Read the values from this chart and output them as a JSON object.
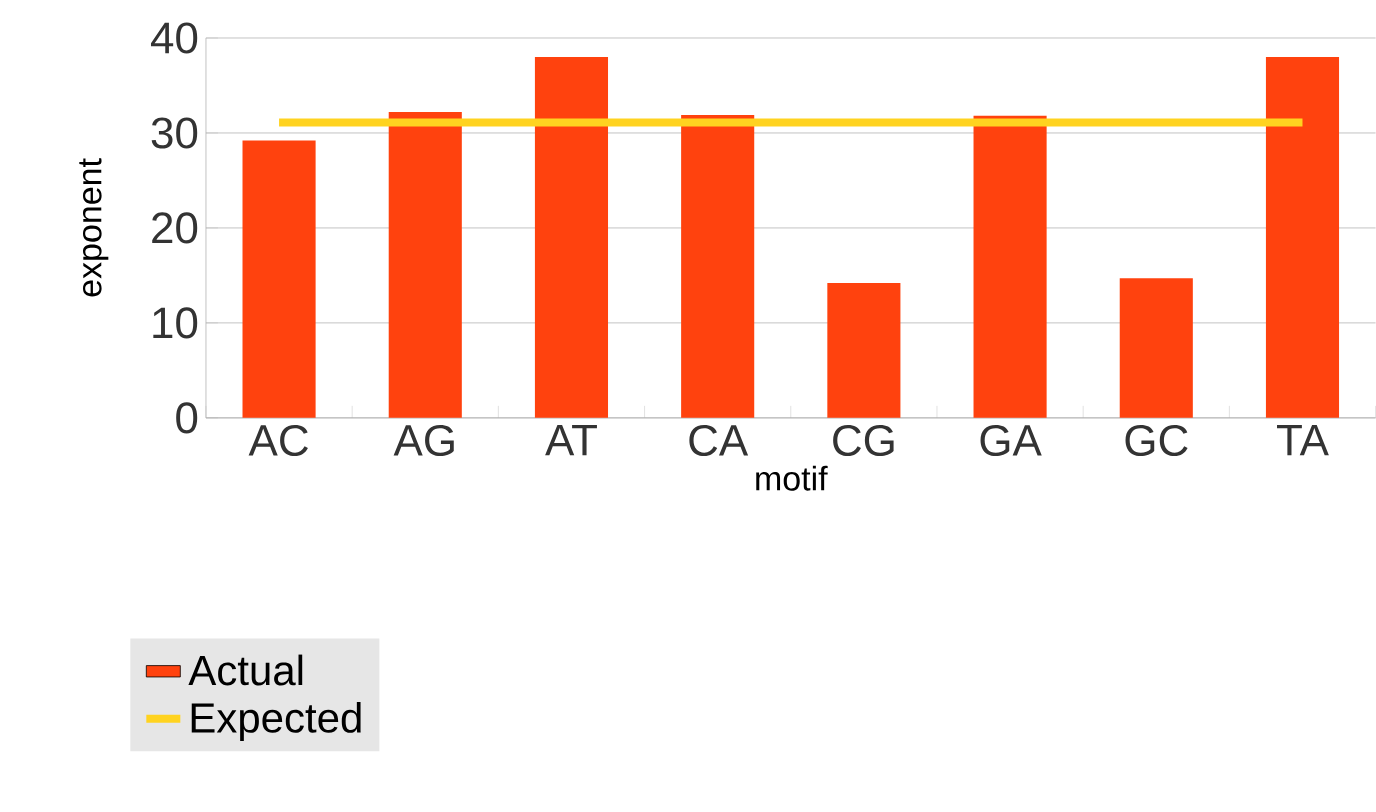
{
  "chart_data": {
    "type": "bar",
    "xlabel": "motif",
    "ylabel": "exponent",
    "categories": [
      "AC",
      "AG",
      "AT",
      "CA",
      "CG",
      "GA",
      "GC",
      "TA"
    ],
    "series": [
      {
        "name": "Actual",
        "color": "#ff420e",
        "values": [
          29.2,
          32.2,
          38.0,
          31.9,
          14.2,
          31.8,
          14.7,
          38.0
        ]
      },
      {
        "name": "Expected",
        "type": "line",
        "color": "#ffd320",
        "values": [
          31.1,
          31.1,
          31.1,
          31.1,
          31.1,
          31.1,
          31.1,
          31.1
        ]
      }
    ],
    "ylim": [
      0,
      40
    ],
    "yticks": [
      0,
      10,
      20,
      30,
      40
    ],
    "grid": "y",
    "legend": "bottom left",
    "marker": "none",
    "line_style": "solid"
  }
}
